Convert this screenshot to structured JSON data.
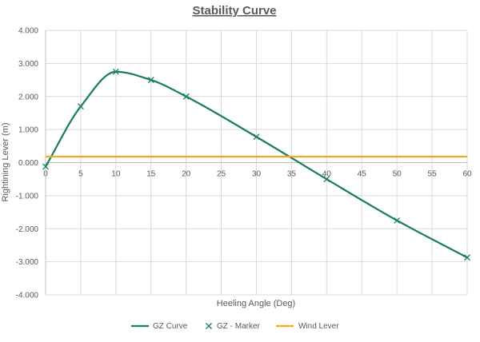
{
  "chart_data": {
    "type": "line",
    "title": "Stability Curve",
    "xlabel": "Heeling Angle (Deg)",
    "ylabel": "Rightining Lever (m)",
    "xlim": [
      0,
      60
    ],
    "ylim": [
      -4,
      4
    ],
    "x_ticks": [
      "0",
      "5",
      "10",
      "15",
      "20",
      "25",
      "30",
      "35",
      "40",
      "45",
      "50",
      "55",
      "60"
    ],
    "y_ticks": [
      "4.000",
      "3.000",
      "2.000",
      "1.000",
      "0.000",
      "-1.000",
      "-2.000",
      "-3.000",
      "-4.000"
    ],
    "grid": true,
    "legend_position": "bottom",
    "series": [
      {
        "name": "GZ Curve",
        "style": "smooth-line",
        "color": "#1a7f5a",
        "x": [
          0,
          5,
          10,
          15,
          20,
          30,
          40,
          50,
          60
        ],
        "values": [
          -0.12,
          1.7,
          2.75,
          2.5,
          2.0,
          0.78,
          -0.5,
          -1.75,
          -2.87
        ]
      },
      {
        "name": "GZ - Marker",
        "style": "marker-x",
        "color": "#1a7f5a",
        "x": [
          0,
          5,
          10,
          15,
          20,
          30,
          40,
          50,
          60
        ],
        "values": [
          -0.12,
          1.7,
          2.75,
          2.5,
          2.0,
          0.78,
          -0.5,
          -1.75,
          -2.87
        ]
      },
      {
        "name": "Wind Lever",
        "style": "line",
        "color": "#f5a623",
        "x": [
          0,
          60
        ],
        "values": [
          0.18,
          0.18
        ]
      }
    ]
  }
}
